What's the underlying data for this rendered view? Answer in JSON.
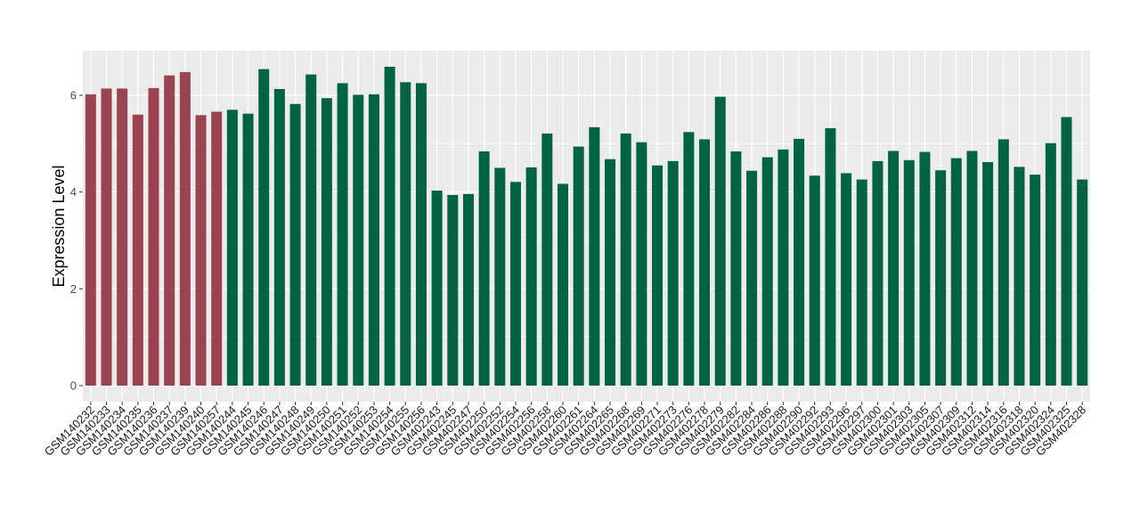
{
  "chart_data": {
    "type": "bar",
    "title": "",
    "xlabel": "",
    "ylabel": "Expression Level",
    "ylim": [
      0,
      6.92
    ],
    "yticks": [
      0,
      2,
      4,
      6
    ],
    "ytick_labels": [
      "0",
      "2",
      "4",
      "6"
    ],
    "grid": true,
    "legend": "none",
    "colors": {
      "group1": "#9b4451",
      "group2": "#006443",
      "panel_bg": "#ebebeb",
      "grid": "#ffffff"
    },
    "categories": [
      "GSM140232",
      "GSM140233",
      "GSM140234",
      "GSM140235",
      "GSM140236",
      "GSM140237",
      "GSM140239",
      "GSM140240",
      "GSM140257",
      "GSM140244",
      "GSM140245",
      "GSM140246",
      "GSM140247",
      "GSM140248",
      "GSM140249",
      "GSM140250",
      "GSM140251",
      "GSM140252",
      "GSM140253",
      "GSM140254",
      "GSM140255",
      "GSM140256",
      "GSM402243",
      "GSM402245",
      "GSM402247",
      "GSM402250",
      "GSM402252",
      "GSM402254",
      "GSM402256",
      "GSM402258",
      "GSM402260",
      "GSM402261",
      "GSM402264",
      "GSM402265",
      "GSM402268",
      "GSM402269",
      "GSM402271",
      "GSM402273",
      "GSM402276",
      "GSM402278",
      "GSM402279",
      "GSM402282",
      "GSM402284",
      "GSM402286",
      "GSM402288",
      "GSM402290",
      "GSM402292",
      "GSM402293",
      "GSM402296",
      "GSM402297",
      "GSM402300",
      "GSM402301",
      "GSM402303",
      "GSM402305",
      "GSM402307",
      "GSM402309",
      "GSM402312",
      "GSM402314",
      "GSM402316",
      "GSM402318",
      "GSM402320",
      "GSM402324",
      "GSM402325",
      "GSM402328"
    ],
    "values": [
      6.02,
      6.14,
      6.14,
      5.6,
      6.15,
      6.41,
      6.48,
      5.59,
      5.66,
      5.7,
      5.62,
      6.54,
      6.13,
      5.82,
      6.43,
      5.94,
      6.25,
      6.01,
      6.02,
      6.59,
      6.27,
      6.25,
      4.03,
      3.94,
      3.96,
      4.84,
      4.5,
      4.21,
      4.51,
      5.21,
      4.17,
      4.94,
      5.34,
      4.68,
      5.21,
      5.03,
      4.55,
      4.64,
      5.24,
      5.09,
      5.97,
      4.84,
      4.44,
      4.72,
      4.88,
      5.1,
      4.34,
      5.32,
      4.39,
      4.26,
      4.64,
      4.85,
      4.66,
      4.83,
      4.45,
      4.7,
      4.85,
      4.62,
      5.09,
      4.52,
      4.36,
      5.01,
      5.55,
      4.26
    ],
    "groups": [
      1,
      1,
      1,
      1,
      1,
      1,
      1,
      1,
      1,
      2,
      2,
      2,
      2,
      2,
      2,
      2,
      2,
      2,
      2,
      2,
      2,
      2,
      2,
      2,
      2,
      2,
      2,
      2,
      2,
      2,
      2,
      2,
      2,
      2,
      2,
      2,
      2,
      2,
      2,
      2,
      2,
      2,
      2,
      2,
      2,
      2,
      2,
      2,
      2,
      2,
      2,
      2,
      2,
      2,
      2,
      2,
      2,
      2,
      2,
      2,
      2,
      2,
      2,
      2
    ]
  }
}
